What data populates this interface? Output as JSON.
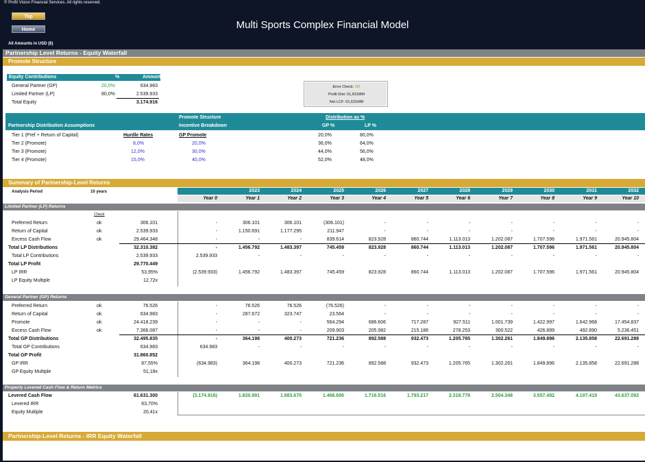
{
  "header": {
    "copyright": "© Profit Vision Financial Services. All rights reserved.",
    "top_label": "Top",
    "home_label": "Home",
    "title": "Multi Sports Complex Financial Model",
    "amounts_note": "All Amounts in  USD ($)"
  },
  "section1": {
    "title": "Partnership Level Returns - Equity Waterfall",
    "promote_structure": "Promote Structure"
  },
  "equity_contributions": {
    "headers": [
      "Equity Contributions",
      "%",
      "Amount"
    ],
    "rows": [
      {
        "label": "General Partner (GP)",
        "pct": "20,0%",
        "amount": "634.983"
      },
      {
        "label": "Limited Partner (LP)",
        "pct": "80,0%",
        "amount": "2.539.933"
      },
      {
        "label": "Total Equity",
        "pct": "",
        "amount": "3.174.916"
      }
    ]
  },
  "error_check": {
    "label": "Error Check:",
    "status": "OK",
    "profit_dist": "Profit Dist:  61,631MM",
    "net_lcf": "Net LCF:  61,631MM"
  },
  "distribution": {
    "assumptions_title": "Partnership Distribution Assumptions",
    "promote_structure": "Promote Structure",
    "incentive_breakdown": "Incentive Breakdown",
    "distribution_as_pct": "Distribution as %",
    "gp_pct": "GP %",
    "lp_pct": "LP %",
    "hurdle_rates": "Hurdle Rates",
    "gp_promote": "GP Promote",
    "tiers": [
      {
        "label": "Tier 1 (Pref + Return of Capital)",
        "hurdle": "",
        "promote": "",
        "gp": "20,0%",
        "lp": "80,0%"
      },
      {
        "label": "Tier 2 (Promote)",
        "hurdle": "8,0%",
        "promote": "20,0%",
        "gp": "36,0%",
        "lp": "64,0%"
      },
      {
        "label": "Tier 3 (Promote)",
        "hurdle": "12,0%",
        "promote": "30,0%",
        "gp": "44,0%",
        "lp": "56,0%"
      },
      {
        "label": "Tier 4 (Promote)",
        "hurdle": "15,0%",
        "promote": "40,0%",
        "gp": "52,0%",
        "lp": "48,0%"
      }
    ]
  },
  "summary": {
    "title": "Summary of Partnership-Level Returns",
    "analysis_period_label": "Analysis Period",
    "analysis_period_value": "10 years",
    "years": [
      "",
      "2023",
      "2024",
      "2025",
      "2026",
      "2027",
      "2028",
      "2029",
      "2030",
      "2031",
      "2032"
    ],
    "year_index": [
      "Year 0",
      "Year 1",
      "Year 2",
      "Year 3",
      "Year 4",
      "Year 5",
      "Year 6",
      "Year 7",
      "Year 8",
      "Year 9",
      "Year 10"
    ]
  },
  "lp_section": {
    "title": "Limited Partner (LP) Returns",
    "check_label": "Check",
    "rows": [
      {
        "label": "Preferred Return",
        "check": "ok",
        "total": "306.101",
        "vals": [
          "-",
          "306.101",
          "306.101",
          "(306.101)",
          "-",
          "-",
          "-",
          "-",
          "-",
          "-",
          "-"
        ]
      },
      {
        "label": "Return of Capital",
        "check": "ok",
        "total": "2.539.933",
        "vals": [
          "-",
          "1.150.691",
          "1.177.295",
          "211.947",
          "-",
          "-",
          "-",
          "-",
          "-",
          "-",
          "-"
        ]
      },
      {
        "label": "Excess Cash Flow",
        "check": "ok",
        "total": "29.464.348",
        "vals": [
          "-",
          "-",
          "-",
          "839.614",
          "823.928",
          "860.744",
          "1.113.013",
          "1.202.087",
          "1.707.596",
          "1.971.561",
          "20.945.804"
        ]
      },
      {
        "label": "Total LP Distributions",
        "check": "",
        "total": "32.310.382",
        "vals": [
          "-",
          "1.456.792",
          "1.483.397",
          "745.459",
          "823.928",
          "860.744",
          "1.113.013",
          "1.202.087",
          "1.707.596",
          "1.971.561",
          "20.945.804"
        ]
      },
      {
        "label": "Total LP Contributions",
        "check": "",
        "total": "2.539.933",
        "vals": [
          "2.539.933",
          "-",
          "-",
          "-",
          "-",
          "-",
          "-",
          "-",
          "-",
          "-",
          "-"
        ]
      },
      {
        "label": "Total LP Profit",
        "check": "",
        "total": "29.770.449",
        "vals": [
          "",
          "",
          "",
          "",
          "",
          "",
          "",
          "",
          "",
          "",
          ""
        ]
      },
      {
        "label": "LP IRR",
        "check": "",
        "total": "53,95%",
        "vals": [
          "(2.539.933)",
          "1.456.792",
          "1.483.397",
          "745.459",
          "823.928",
          "860.744",
          "1.113.013",
          "1.202.087",
          "1.707.596",
          "1.971.561",
          "20.945.804"
        ]
      },
      {
        "label": "LP Equity Multiple",
        "check": "",
        "total": "12,72x",
        "vals": [
          "",
          "",
          "",
          "",
          "",
          "",
          "",
          "",
          "",
          "",
          ""
        ]
      }
    ]
  },
  "gp_section": {
    "title": "General Partner (GP) Returns",
    "rows": [
      {
        "label": "Preferred Return",
        "check": "ok",
        "total": "76.526",
        "vals": [
          "-",
          "76.526",
          "76.526",
          "(76.526)",
          "-",
          "-",
          "-",
          "-",
          "-",
          "-",
          "-"
        ]
      },
      {
        "label": "Return of Capital",
        "check": "ok",
        "total": "634.983",
        "vals": [
          "-",
          "287.672",
          "323.747",
          "23.564",
          "-",
          "-",
          "-",
          "-",
          "-",
          "-",
          "-"
        ]
      },
      {
        "label": "Promote",
        "check": "ok",
        "total": "24.418.239",
        "vals": [
          "-",
          "-",
          "-",
          "564.294",
          "686.606",
          "717.287",
          "927.511",
          "1.001.739",
          "1.422.997",
          "1.642.968",
          "17.454.837"
        ]
      },
      {
        "label": "Excess Cash Flow",
        "check": "ok",
        "total": "7.366.087",
        "vals": [
          "-",
          "-",
          "-",
          "209.903",
          "205.982",
          "215.186",
          "278.253",
          "300.522",
          "426.899",
          "492.890",
          "5.236.451"
        ]
      },
      {
        "label": "Total GP Distributions",
        "check": "",
        "total": "32.495.835",
        "vals": [
          "-",
          "364.198",
          "400.273",
          "721.236",
          "892.588",
          "932.473",
          "1.205.765",
          "1.302.261",
          "1.849.896",
          "2.135.858",
          "22.691.288"
        ]
      },
      {
        "label": "Total GP Contributions",
        "check": "",
        "total": "634.983",
        "vals": [
          "634.983",
          "-",
          "-",
          "-",
          "-",
          "-",
          "-",
          "-",
          "-",
          "-",
          "-"
        ]
      },
      {
        "label": "Total GP Profit",
        "check": "",
        "total": "31.860.852",
        "vals": [
          "",
          "",
          "",
          "",
          "",
          "",
          "",
          "",
          "",
          "",
          ""
        ]
      },
      {
        "label": "GP IRR",
        "check": "",
        "total": "87,55%",
        "vals": [
          "(634.983)",
          "364.198",
          "400.273",
          "721.236",
          "892.588",
          "932.473",
          "1.205.765",
          "1.302.261",
          "1.849.896",
          "2.135.858",
          "22.691.288"
        ]
      },
      {
        "label": "GP Equity Multiple",
        "check": "",
        "total": "51,18x",
        "vals": [
          "",
          "",
          "",
          "",
          "",
          "",
          "",
          "",
          "",
          "",
          ""
        ]
      }
    ]
  },
  "property_section": {
    "title": "Property Levered Cash Flow & Return Metrics",
    "rows": [
      {
        "label": "Levered Cash Flow",
        "total": "61.631.300",
        "vals": [
          "(3.174.916)",
          "1.820.991",
          "1.883.670",
          "1.466.695",
          "1.716.516",
          "1.793.217",
          "2.318.778",
          "2.504.348",
          "3.557.492",
          "4.107.419",
          "43.637.092"
        ]
      },
      {
        "label": "Levered IRR",
        "total": "63,70%",
        "vals": []
      },
      {
        "label": "Equity Multiple",
        "total": "20,41x",
        "vals": []
      }
    ]
  },
  "irr_section": {
    "title": "Partnership-Level Returns - IRR Equity Waterfall"
  }
}
